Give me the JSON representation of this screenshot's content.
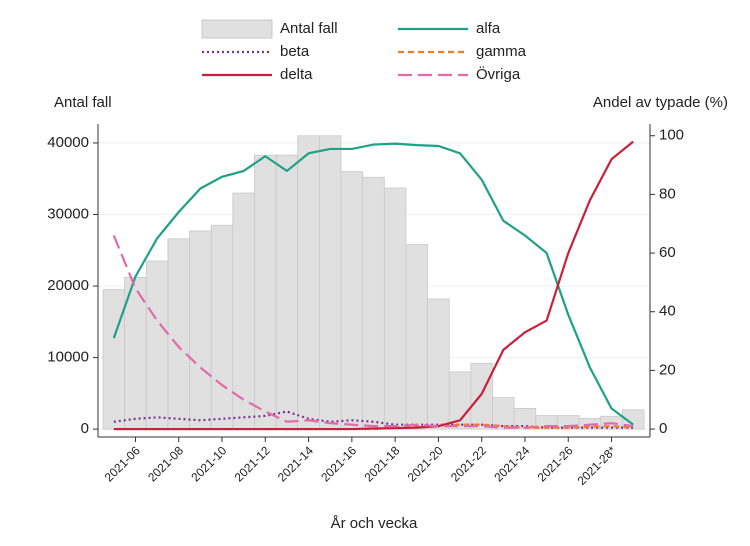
{
  "chart_data": {
    "type": "bar",
    "legend": "top",
    "grid": true,
    "y_label": "Antal fall",
    "y2_label": "Andel av typade (%)",
    "x_label": "År och vecka",
    "categories": [
      null,
      "2021-06",
      null,
      "2021-08",
      null,
      "2021-10",
      null,
      "2021-12",
      null,
      "2021-14",
      null,
      "2021-16",
      null,
      "2021-18",
      null,
      "2021-20",
      null,
      "2021-22",
      null,
      "2021-24",
      null,
      "2021-26",
      null,
      "2021-28*",
      null
    ],
    "ylim": [
      -1100,
      42650
    ],
    "yticks": [
      0,
      10000,
      20000,
      30000,
      40000
    ],
    "y2lim": [
      -2.7,
      104
    ],
    "y2ticks": [
      0,
      20,
      40,
      60,
      80,
      100
    ],
    "series": [
      {
        "name": "Antal fall",
        "type": "bar",
        "color": "#e0e0e0",
        "values": [
          19500,
          21200,
          23500,
          26600,
          27700,
          28500,
          33000,
          38300,
          38300,
          41000,
          41000,
          36000,
          35200,
          33700,
          25800,
          18200,
          8000,
          9200,
          4400,
          2900,
          1900,
          1900,
          1500,
          1800,
          2700
        ]
      },
      {
        "name": "alfa",
        "type": "line",
        "axis": "y2",
        "dash": "solid",
        "color": "#1fa187",
        "values": [
          31,
          52,
          65,
          74,
          82,
          86,
          88,
          93,
          88,
          94,
          95.5,
          95.5,
          97,
          97.3,
          96.8,
          96.5,
          94,
          85,
          71,
          66,
          60,
          39,
          21,
          7,
          1.5
        ]
      },
      {
        "name": "beta",
        "type": "line",
        "axis": "y2",
        "dash": "dotted",
        "color": "#7b3294",
        "values": [
          2.5,
          3.5,
          4,
          3.5,
          3,
          3.5,
          4,
          4.5,
          6,
          3.5,
          2.5,
          3,
          2.5,
          1.5,
          1.5,
          1.5,
          1.5,
          1.5,
          1,
          1,
          0.5,
          0.5,
          0.5,
          0.5,
          0.5
        ]
      },
      {
        "name": "gamma",
        "type": "line",
        "axis": "y2",
        "dash": "dashed",
        "color": "#f07b2a",
        "values": [
          0,
          0,
          0,
          0,
          0,
          0,
          0,
          0,
          0,
          0,
          0,
          0,
          0,
          0.5,
          0.8,
          1,
          1.5,
          1.5,
          1,
          0.5,
          0.5,
          0.5,
          0.8,
          1,
          0.5
        ]
      },
      {
        "name": "delta",
        "type": "line",
        "axis": "y2",
        "dash": "solid",
        "color": "#c8203c",
        "values": [
          0,
          0,
          0,
          0,
          0,
          0,
          0,
          0,
          0,
          0,
          0,
          0,
          0.2,
          0.3,
          0.5,
          1,
          3,
          12,
          27,
          33,
          37,
          60,
          78,
          92,
          98
        ]
      },
      {
        "name": "Övriga",
        "type": "line",
        "axis": "y2",
        "dash": "longdash",
        "color": "#e26aa8",
        "values": [
          66,
          48,
          37,
          28,
          21,
          15,
          10,
          6,
          2.5,
          3,
          2,
          1.5,
          1,
          1,
          1.5,
          1,
          1,
          1,
          0.5,
          0.5,
          1,
          1,
          1.5,
          2,
          1
        ]
      }
    ]
  }
}
